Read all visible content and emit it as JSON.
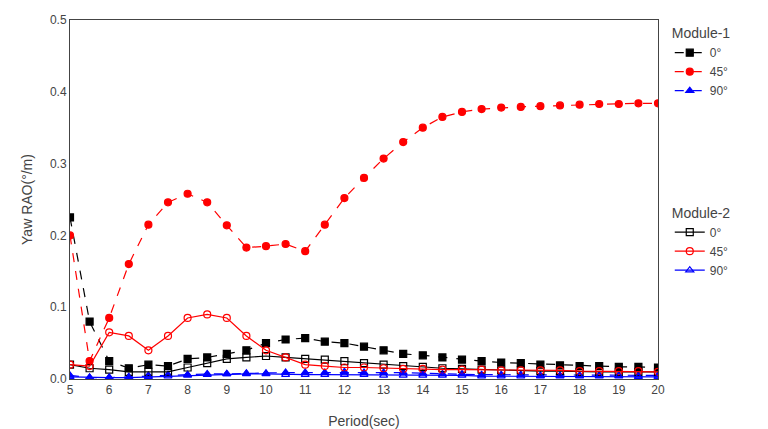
{
  "chart_data": {
    "type": "line",
    "xlabel": "Period(sec)",
    "ylabel": "Yaw RAO(°/m)",
    "xlim": [
      5,
      20
    ],
    "ylim": [
      0,
      0.5
    ],
    "xticks": [
      5,
      6,
      7,
      8,
      9,
      10,
      11,
      12,
      13,
      14,
      15,
      16,
      17,
      18,
      19,
      20
    ],
    "yticks": [
      {
        "value": 0,
        "label": "0.0"
      },
      0.1,
      0.2,
      0.3,
      0.4,
      0.5
    ],
    "grid": false,
    "legend": "right",
    "x": [
      5.0,
      5.5,
      6.0,
      6.5,
      7.0,
      7.5,
      8.0,
      8.5,
      9.0,
      9.5,
      10.0,
      10.5,
      11.0,
      11.5,
      12.0,
      12.5,
      13.0,
      13.5,
      14.0,
      14.5,
      15.0,
      15.5,
      16.0,
      16.5,
      17.0,
      17.5,
      18.0,
      18.5,
      19.0,
      19.5,
      20.0
    ],
    "series": [
      {
        "name": "0°",
        "group": "Module-1",
        "color": "#000000",
        "marker": "square",
        "line_style": "dash",
        "values": [
          0.225,
          0.08,
          0.025,
          0.015,
          0.02,
          0.018,
          0.028,
          0.03,
          0.035,
          0.04,
          0.05,
          0.055,
          0.057,
          0.052,
          0.05,
          0.045,
          0.04,
          0.035,
          0.033,
          0.03,
          0.027,
          0.025,
          0.023,
          0.022,
          0.02,
          0.019,
          0.018,
          0.018,
          0.017,
          0.017,
          0.016
        ]
      },
      {
        "name": "45°",
        "group": "Module-1",
        "color": "#ff0000",
        "marker": "circle",
        "line_style": "dash",
        "values": [
          0.2,
          0.025,
          0.085,
          0.16,
          0.215,
          0.246,
          0.258,
          0.246,
          0.214,
          0.183,
          0.185,
          0.188,
          0.178,
          0.215,
          0.252,
          0.28,
          0.307,
          0.33,
          0.35,
          0.365,
          0.372,
          0.376,
          0.378,
          0.379,
          0.38,
          0.381,
          0.382,
          0.383,
          0.383,
          0.384,
          0.384
        ]
      },
      {
        "name": "90°",
        "group": "Module-1",
        "color": "#0000ff",
        "marker": "triangle-up",
        "line_style": "dash",
        "values": [
          0.005,
          0.002,
          0.002,
          0.003,
          0.005,
          0.006,
          0.006,
          0.007,
          0.007,
          0.008,
          0.008,
          0.009,
          0.009,
          0.009,
          0.01,
          0.009,
          0.009,
          0.009,
          0.008,
          0.007,
          0.007,
          0.006,
          0.006,
          0.006,
          0.005,
          0.005,
          0.005,
          0.005,
          0.005,
          0.005,
          0.005
        ]
      },
      {
        "name": "0°",
        "group": "Module-2",
        "color": "#000000",
        "marker": "square-open",
        "line_style": "solid",
        "values": [
          0.02,
          0.015,
          0.013,
          0.01,
          0.01,
          0.01,
          0.016,
          0.022,
          0.028,
          0.03,
          0.032,
          0.03,
          0.028,
          0.027,
          0.025,
          0.022,
          0.02,
          0.018,
          0.017,
          0.015,
          0.014,
          0.013,
          0.012,
          0.012,
          0.011,
          0.011,
          0.01,
          0.01,
          0.01,
          0.01,
          0.01
        ]
      },
      {
        "name": "45°",
        "group": "Module-2",
        "color": "#ff0000",
        "marker": "circle-open",
        "line_style": "solid",
        "values": [
          0.02,
          0.018,
          0.065,
          0.06,
          0.04,
          0.06,
          0.085,
          0.09,
          0.085,
          0.06,
          0.04,
          0.03,
          0.02,
          0.018,
          0.016,
          0.016,
          0.015,
          0.014,
          0.014,
          0.013,
          0.013,
          0.013,
          0.012,
          0.012,
          0.012,
          0.012,
          0.011,
          0.011,
          0.011,
          0.011,
          0.01
        ]
      },
      {
        "name": "90°",
        "group": "Module-2",
        "color": "#0000ff",
        "marker": "triangle-up-open",
        "line_style": "solid",
        "values": [
          0.003,
          0.002,
          0.002,
          0.002,
          0.003,
          0.004,
          0.005,
          0.006,
          0.007,
          0.007,
          0.007,
          0.006,
          0.006,
          0.006,
          0.006,
          0.006,
          0.005,
          0.005,
          0.005,
          0.005,
          0.005,
          0.004,
          0.004,
          0.004,
          0.004,
          0.004,
          0.004,
          0.004,
          0.004,
          0.003,
          0.003
        ]
      }
    ]
  }
}
